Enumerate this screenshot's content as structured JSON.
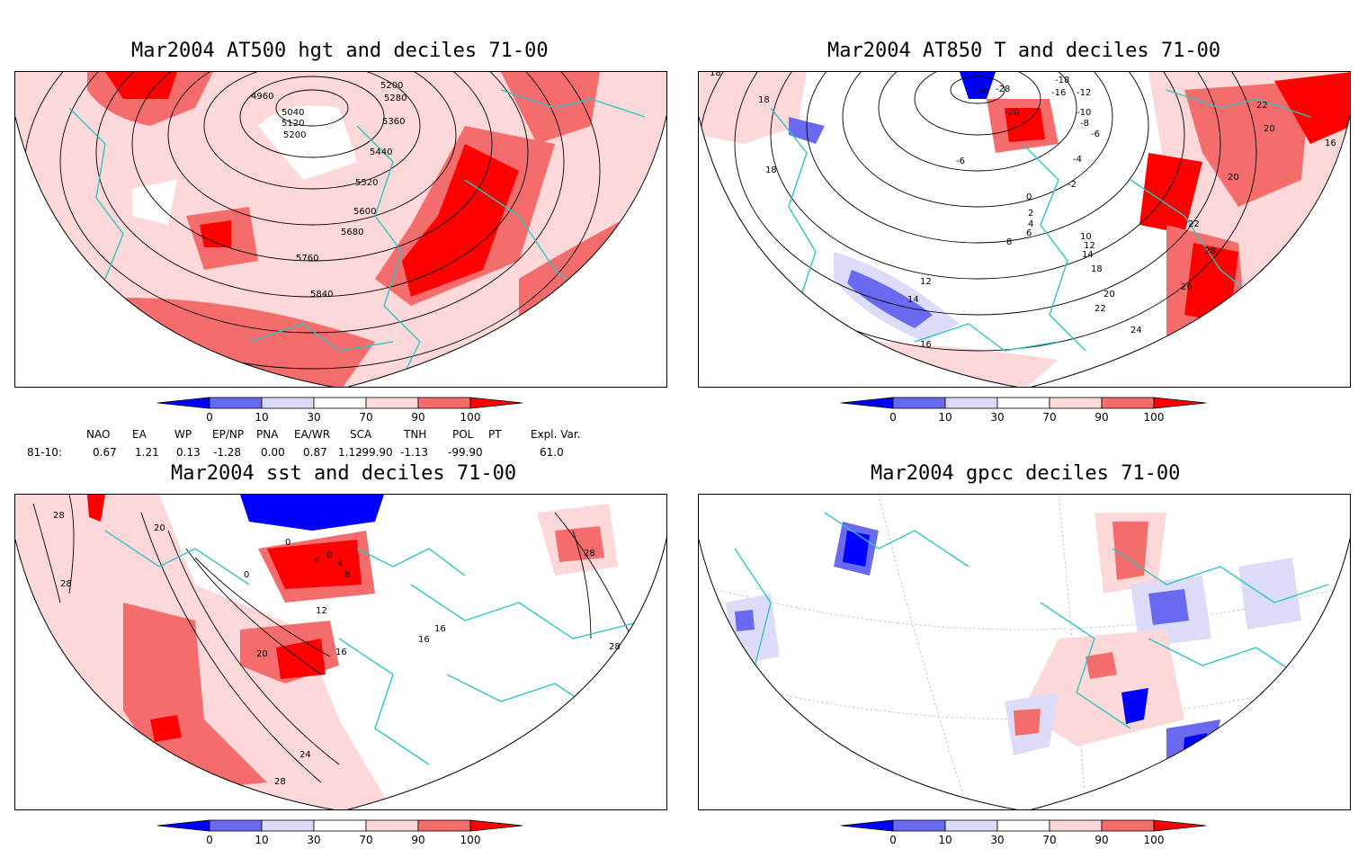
{
  "titles": {
    "p1": "Mar2004 AT500 hgt and deciles 71-00",
    "p2": "Mar2004 AT850 T and deciles 71-00",
    "p3": "Mar2004 sst and deciles 71-00",
    "p4": "Mar2004 gpcc deciles 71-00"
  },
  "colorbar": {
    "ticks": [
      "0",
      "10",
      "30",
      "70",
      "90",
      "100"
    ],
    "colors": [
      "#0000ff",
      "#6a6af0",
      "#dcdcf8",
      "#ffffff",
      "#fdd8d8",
      "#f56c6c",
      "#ff0000"
    ]
  },
  "contours": {
    "p1": [
      "4960",
      "5040",
      "5120",
      "5200",
      "5200",
      "5280",
      "5360",
      "5440",
      "5520",
      "5600",
      "5680",
      "5760",
      "5840"
    ],
    "p2": [
      "-30",
      "-28",
      "-20",
      "-18",
      "-16",
      "-12",
      "-10",
      "-8",
      "-6",
      "-6",
      "-4",
      "-2",
      "0",
      "2",
      "4",
      "6",
      "8",
      "10",
      "12",
      "14",
      "18",
      "20",
      "22",
      "24",
      "12",
      "14",
      "16",
      "18",
      "18",
      "18",
      "16",
      "20",
      "22",
      "20",
      "22",
      "26",
      "28"
    ],
    "p3": [
      "28",
      "28",
      "20",
      "0",
      "4",
      "0",
      "4",
      "8",
      "0",
      "12",
      "16",
      "20",
      "24",
      "28",
      "28",
      "28",
      "16",
      "16"
    ]
  },
  "indices": {
    "headers": [
      "NAO",
      "EA",
      "WP",
      "EP/NP",
      "PNA",
      "EA/WR",
      "SCA",
      "TNH",
      "POL",
      "PT",
      "Expl. Var."
    ],
    "row_label": "81-10:",
    "values": [
      "0.67",
      "1.21",
      "0.13",
      "-1.28",
      "0.00",
      "0.87",
      "1.12",
      "-99.90",
      "-1.13",
      "-99.90",
      "61.0"
    ]
  },
  "colors": {
    "coast": "#2ec4c4",
    "grid": "#aaaaaa",
    "contour": "#000000"
  }
}
